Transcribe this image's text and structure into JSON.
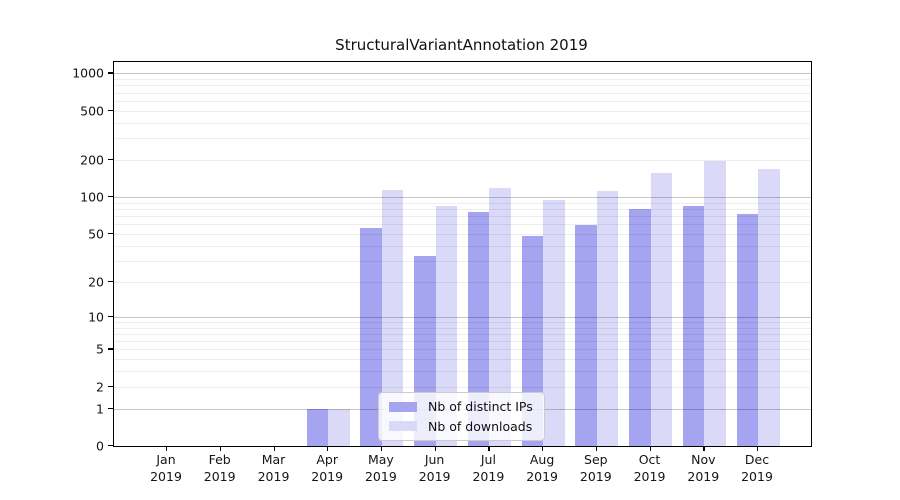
{
  "chart_data": {
    "type": "bar",
    "title": "StructuralVariantAnnotation 2019",
    "categories": [
      "Jan 2019",
      "Feb 2019",
      "Mar 2019",
      "Apr 2019",
      "May 2019",
      "Jun 2019",
      "Jul 2019",
      "Aug 2019",
      "Sep 2019",
      "Oct 2019",
      "Nov 2019",
      "Dec 2019"
    ],
    "series": [
      {
        "name": "Nb of distinct IPs",
        "color": "#a4a4f0",
        "values": [
          0,
          0,
          0,
          1,
          56,
          33,
          75,
          48,
          59,
          80,
          84,
          73
        ]
      },
      {
        "name": "Nb of downloads",
        "color": "#dadaf8",
        "values": [
          0,
          0,
          0,
          1,
          115,
          85,
          118,
          95,
          113,
          157,
          197,
          170
        ]
      }
    ],
    "xlabel": "",
    "ylabel": "",
    "yscale": "log1p",
    "ylim": [
      0,
      1234
    ],
    "yticks": [
      1000,
      500,
      200,
      100,
      50,
      20,
      10,
      5,
      2,
      1,
      0
    ],
    "grid_major": [
      1,
      10,
      100,
      1000
    ],
    "grid": true,
    "legend_position": "lower center"
  }
}
